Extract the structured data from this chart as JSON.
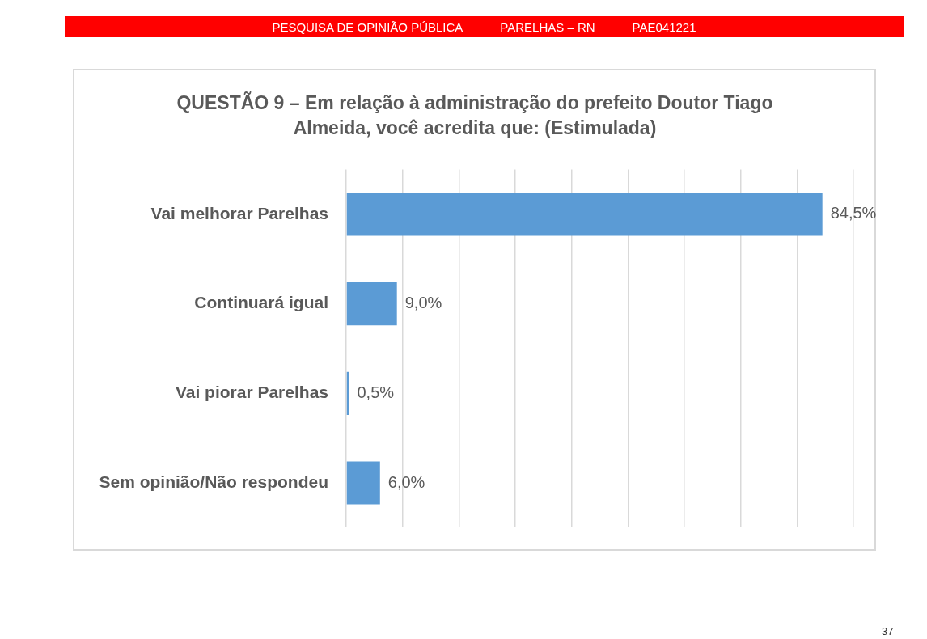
{
  "chart_data": {
    "type": "bar",
    "orientation": "horizontal",
    "title": "QUESTÃO 9 – Em relação à administração do prefeito Doutor Tiago Almeida, você acredita que: (Estimulada)",
    "categories": [
      "Vai melhorar Parelhas",
      "Continuará igual",
      "Vai piorar Parelhas",
      "Sem opinião/Não respondeu"
    ],
    "values": [
      84.5,
      9.0,
      0.5,
      6.0
    ],
    "value_labels": [
      "84,5%",
      "9,0%",
      "0,5%",
      "6,0%"
    ],
    "color": "#5b9bd5",
    "xlim": [
      0,
      90
    ],
    "xticks": [
      0,
      10,
      20,
      30,
      40,
      50,
      60,
      70,
      80,
      90
    ],
    "grid": "x",
    "tick_labels": "y",
    "annotations": [
      "PESQUISA DE OPINIÃO PÚBLICA",
      "PARELHAS – RN",
      "PAE041221",
      "37"
    ]
  }
}
